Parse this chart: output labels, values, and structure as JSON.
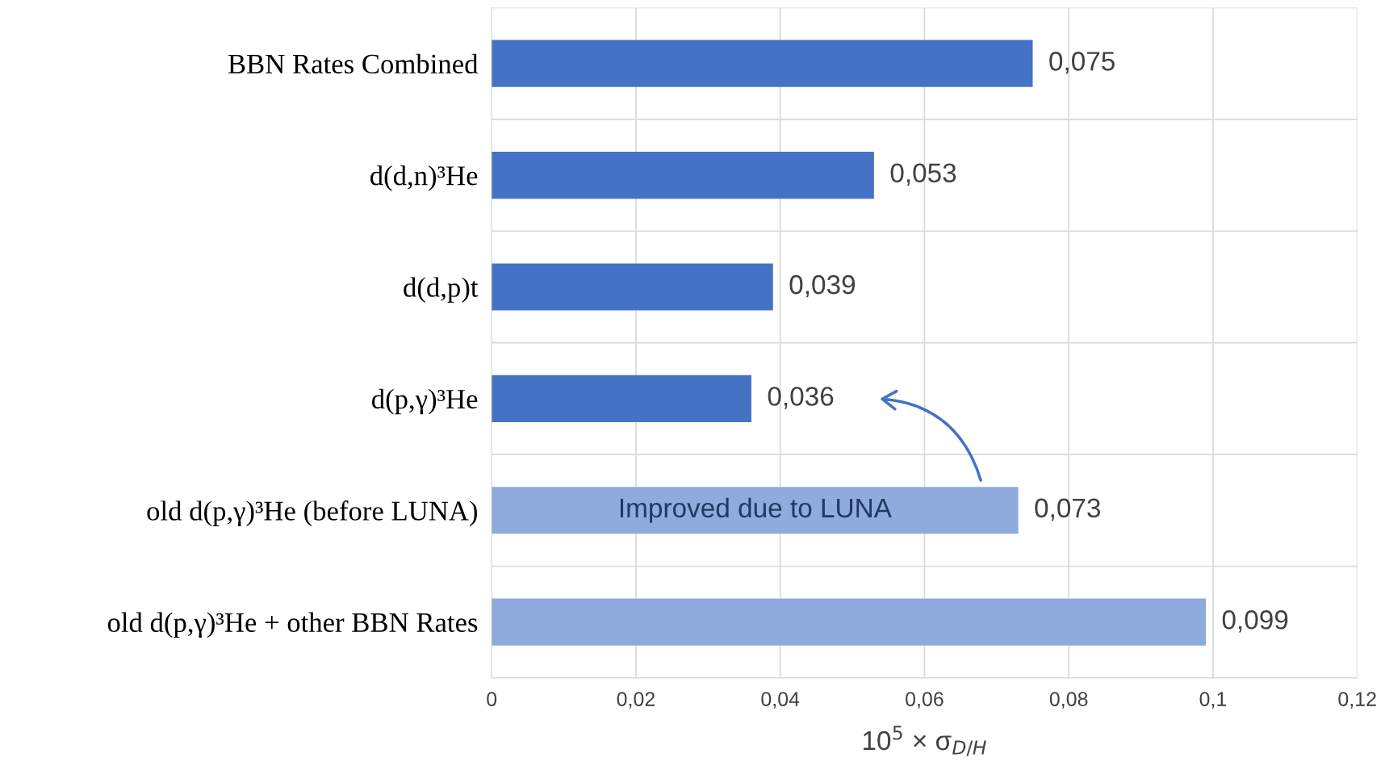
{
  "chart_data": {
    "type": "bar",
    "orientation": "horizontal",
    "categories": [
      "BBN Rates Combined",
      "d(d,n)³He",
      "d(d,p)t",
      "d(p,γ)³He",
      "old d(p,γ)³He (before LUNA)",
      "old d(p,γ)³He + other BBN Rates"
    ],
    "values": [
      0.075,
      0.053,
      0.039,
      0.036,
      0.073,
      0.099
    ],
    "colors": [
      "#4472c4",
      "#4472c4",
      "#4472c4",
      "#4472c4",
      "#8faadc",
      "#8faadc"
    ],
    "value_labels": [
      "0,075",
      "0,053",
      "0,039",
      "0,036",
      "0,073",
      "0,099"
    ],
    "xlim": [
      0,
      0.12
    ],
    "xticks": [
      {
        "value": 0,
        "label": "0"
      },
      {
        "value": 0.02,
        "label": "0,02"
      },
      {
        "value": 0.04,
        "label": "0,04"
      },
      {
        "value": 0.06,
        "label": "0,06"
      },
      {
        "value": 0.08,
        "label": "0,08"
      },
      {
        "value": 0.1,
        "label": "0,1"
      },
      {
        "value": 0.12,
        "label": "0,12"
      }
    ],
    "xlabel": "10$^{5}$ × σ$_{D/H}$",
    "annotations": [
      "Improved due to LUNA"
    ],
    "grid": true
  }
}
